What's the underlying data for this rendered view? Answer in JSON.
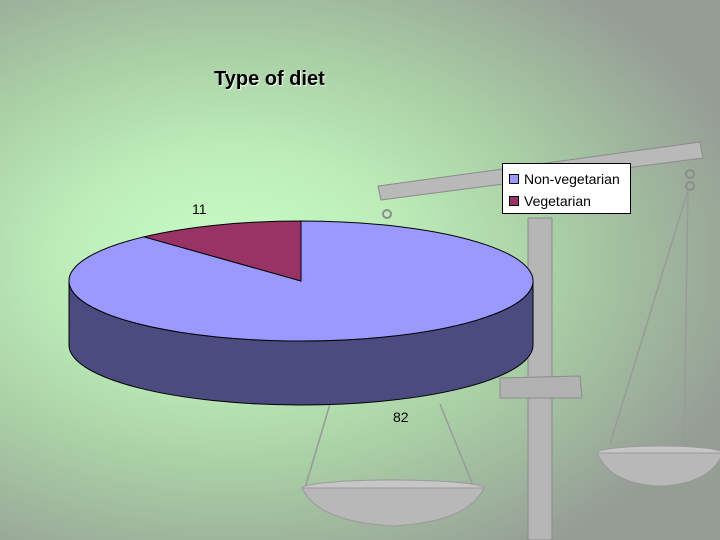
{
  "chart_data": {
    "type": "pie",
    "title": "Type of diet",
    "categories": [
      "Non-vegetarian",
      "Vegetarian"
    ],
    "values": [
      82,
      11
    ],
    "colors": [
      "#9999ff",
      "#993366"
    ],
    "side_colors": [
      "#4b4b80",
      "#4c1a33"
    ],
    "data_labels": [
      "82",
      "11"
    ],
    "legend_position": "right",
    "style": "3d-pie"
  }
}
